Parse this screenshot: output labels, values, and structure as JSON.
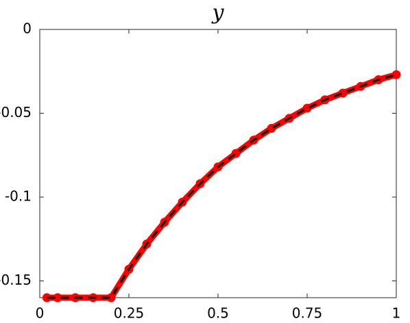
{
  "chart_data": {
    "type": "line",
    "title": "y",
    "x": [
      0.02,
      0.05,
      0.1,
      0.15,
      0.2,
      0.25,
      0.3,
      0.35,
      0.4,
      0.45,
      0.5,
      0.55,
      0.6,
      0.65,
      0.7,
      0.75,
      0.8,
      0.85,
      0.9,
      0.95,
      1.0
    ],
    "series": [
      {
        "color": "#ff0000",
        "style": "marker-line",
        "values": [
          -0.16,
          -0.16,
          -0.16,
          -0.16,
          -0.16,
          -0.143,
          -0.128,
          -0.115,
          -0.103,
          -0.092,
          -0.082,
          -0.074,
          -0.066,
          -0.059,
          -0.053,
          -0.047,
          -0.042,
          -0.038,
          -0.034,
          -0.03,
          -0.027
        ]
      },
      {
        "color": "#000000",
        "style": "dashed",
        "values": [
          -0.16,
          -0.16,
          -0.16,
          -0.16,
          -0.16,
          -0.143,
          -0.128,
          -0.115,
          -0.103,
          -0.092,
          -0.082,
          -0.074,
          -0.066,
          -0.059,
          -0.053,
          -0.047,
          -0.042,
          -0.038,
          -0.034,
          -0.03,
          -0.027
        ]
      }
    ],
    "xlim": [
      0,
      1
    ],
    "xticks": [
      0,
      0.25,
      0.5,
      0.75,
      1
    ],
    "ylim": [
      -0.16,
      0
    ],
    "yticks": [
      -0.15,
      -0.1,
      -0.05,
      0
    ]
  }
}
